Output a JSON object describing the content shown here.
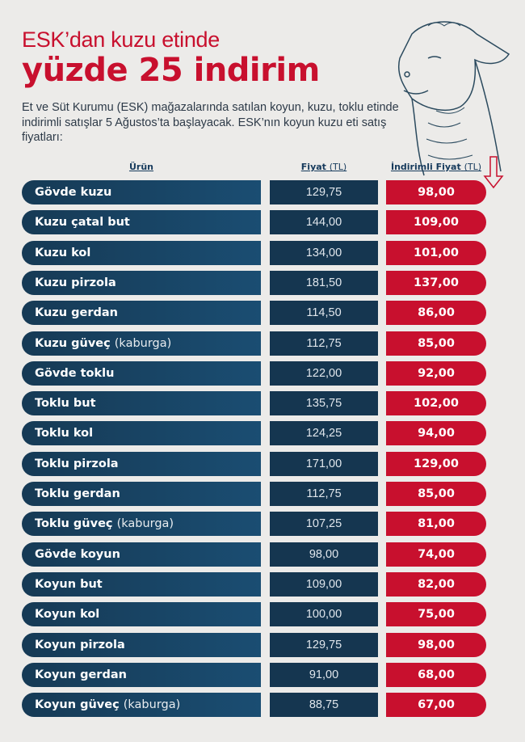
{
  "header": {
    "title_line1": "ESK’dan kuzu etinde",
    "title_line2": "yüzde 25 indirim",
    "description": "Et ve Süt Kurumu (ESK) mağazalarında satılan koyun, kuzu, toklu etinde indirimli satışlar 5 Ağustos’ta başlayacak. ESK’nın koyun kuzu eti satış fiyatları:"
  },
  "columns": {
    "product": "Ürün",
    "price": "Fiyat",
    "price_unit": "(TL)",
    "discount_price": "İndirimli Fiyat",
    "discount_unit": "(TL)"
  },
  "colors": {
    "red": "#c8102e",
    "navy": "#163a55"
  },
  "rows": [
    {
      "name": "Gövde kuzu",
      "extra": "",
      "price": "129,75",
      "discount": "98,00"
    },
    {
      "name": "Kuzu çatal but",
      "extra": "",
      "price": "144,00",
      "discount": "109,00"
    },
    {
      "name": "Kuzu kol",
      "extra": "",
      "price": "134,00",
      "discount": "101,00"
    },
    {
      "name": "Kuzu pirzola",
      "extra": "",
      "price": "181,50",
      "discount": "137,00"
    },
    {
      "name": "Kuzu gerdan",
      "extra": "",
      "price": "114,50",
      "discount": "86,00"
    },
    {
      "name": "Kuzu güveç",
      "extra": "(kaburga)",
      "price": "112,75",
      "discount": "85,00"
    },
    {
      "name": "Gövde toklu",
      "extra": "",
      "price": "122,00",
      "discount": "92,00"
    },
    {
      "name": "Toklu but",
      "extra": "",
      "price": "135,75",
      "discount": "102,00"
    },
    {
      "name": "Toklu kol",
      "extra": "",
      "price": "124,25",
      "discount": "94,00"
    },
    {
      "name": "Toklu pirzola",
      "extra": "",
      "price": "171,00",
      "discount": "129,00"
    },
    {
      "name": "Toklu gerdan",
      "extra": "",
      "price": "112,75",
      "discount": "85,00"
    },
    {
      "name": "Toklu güveç",
      "extra": "(kaburga)",
      "price": "107,25",
      "discount": "81,00"
    },
    {
      "name": "Gövde koyun",
      "extra": "",
      "price": "98,00",
      "discount": "74,00"
    },
    {
      "name": "Koyun but",
      "extra": "",
      "price": "109,00",
      "discount": "82,00"
    },
    {
      "name": "Koyun kol",
      "extra": "",
      "price": "100,00",
      "discount": "75,00"
    },
    {
      "name": "Koyun pirzola",
      "extra": "",
      "price": "129,75",
      "discount": "98,00"
    },
    {
      "name": "Koyun gerdan",
      "extra": "",
      "price": "91,00",
      "discount": "68,00"
    },
    {
      "name": "Koyun güveç",
      "extra": "(kaburga)",
      "price": "88,75",
      "discount": "67,00"
    }
  ]
}
